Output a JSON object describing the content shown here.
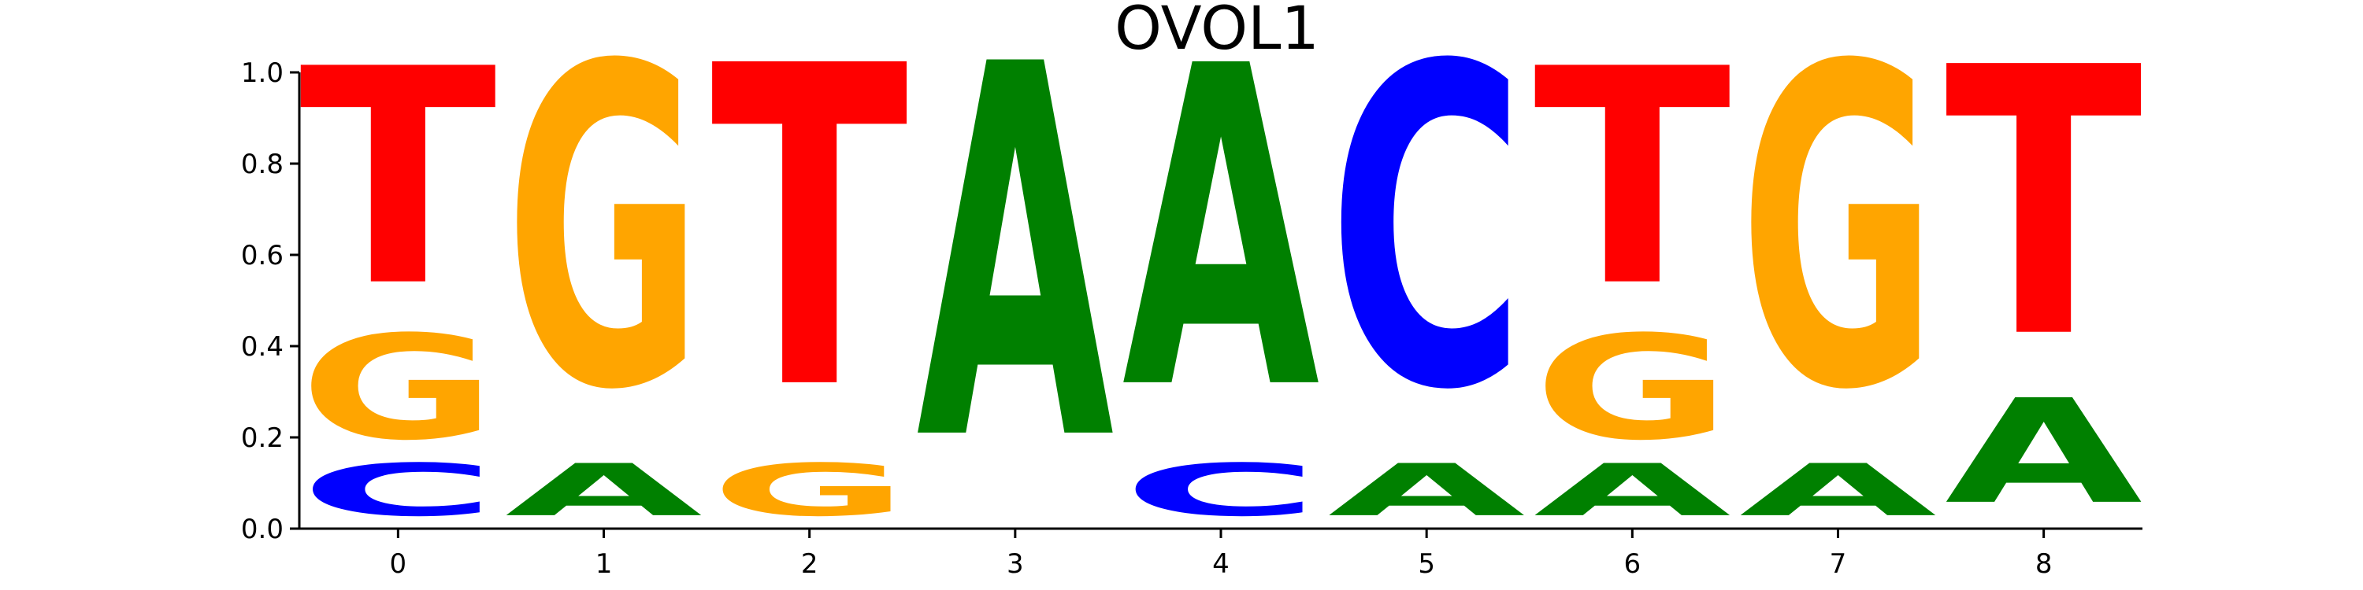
{
  "chart_data": {
    "type": "sequence_logo",
    "title": "OVOL1",
    "xlabel": "",
    "ylabel": "",
    "ylim": [
      0,
      1
    ],
    "yticks": [
      "0.0",
      "0.2",
      "0.4",
      "0.6",
      "0.8",
      "1.0"
    ],
    "positions": [
      "0",
      "1",
      "2",
      "3",
      "4",
      "5",
      "6",
      "7",
      "8"
    ],
    "letters": [
      "A",
      "C",
      "G",
      "T"
    ],
    "colors": {
      "A": "#008000",
      "C": "#0000ff",
      "G": "#ffa500",
      "T": "#ff0000"
    },
    "stacks": [
      [
        {
          "letter": "C",
          "value": 0.14
        },
        {
          "letter": "G",
          "value": 0.28
        },
        {
          "letter": "T",
          "value": 0.58
        }
      ],
      [
        {
          "letter": "A",
          "value": 0.14
        },
        {
          "letter": "G",
          "value": 0.86
        }
      ],
      [
        {
          "letter": "G",
          "value": 0.14
        },
        {
          "letter": "T",
          "value": 0.86
        }
      ],
      [
        {
          "letter": "A",
          "value": 1.0
        }
      ],
      [
        {
          "letter": "C",
          "value": 0.14
        },
        {
          "letter": "A",
          "value": 0.86
        }
      ],
      [
        {
          "letter": "A",
          "value": 0.14
        },
        {
          "letter": "C",
          "value": 0.86
        }
      ],
      [
        {
          "letter": "A",
          "value": 0.14
        },
        {
          "letter": "G",
          "value": 0.28
        },
        {
          "letter": "T",
          "value": 0.58
        }
      ],
      [
        {
          "letter": "A",
          "value": 0.14
        },
        {
          "letter": "G",
          "value": 0.86
        }
      ],
      [
        {
          "letter": "A",
          "value": 0.28
        },
        {
          "letter": "T",
          "value": 0.72
        }
      ]
    ]
  }
}
